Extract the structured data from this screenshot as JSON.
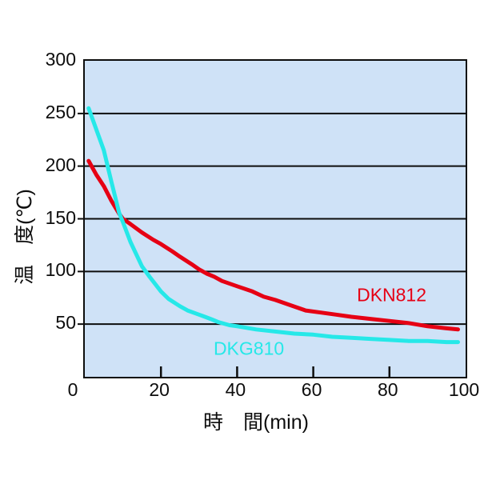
{
  "chart_data": {
    "type": "line",
    "title": "",
    "xlabel": "時　間(min)",
    "ylabel": "温　度(℃)",
    "xlim": [
      0,
      100
    ],
    "ylim": [
      0,
      300
    ],
    "x_ticks": [
      0,
      20,
      40,
      60,
      80,
      100
    ],
    "y_ticks": [
      50,
      100,
      150,
      200,
      250,
      300
    ],
    "grid": "horizontal lines every 50, black, ticks extend left of axis; inner bottom ticks at 20/40/60/80",
    "legend_position": "inline labels beside curves",
    "colors": {
      "plot_background": "#cfe2f7",
      "grid": "#0d0d0d",
      "axis": "#0d0d0d",
      "text": "#0d0d0d"
    },
    "series": [
      {
        "name": "DKN812",
        "color": "#e60014",
        "label_anchor": {
          "x": 81,
          "y": 76
        },
        "points": [
          [
            1,
            205
          ],
          [
            3,
            192
          ],
          [
            5,
            181
          ],
          [
            7,
            167
          ],
          [
            9,
            155
          ],
          [
            10,
            150
          ],
          [
            12,
            145
          ],
          [
            15,
            137
          ],
          [
            18,
            130
          ],
          [
            20,
            126
          ],
          [
            23,
            119
          ],
          [
            25,
            114
          ],
          [
            28,
            107
          ],
          [
            30,
            102
          ],
          [
            32,
            98
          ],
          [
            34,
            95
          ],
          [
            36,
            91
          ],
          [
            40,
            86
          ],
          [
            44,
            81
          ],
          [
            47,
            76
          ],
          [
            50,
            73
          ],
          [
            54,
            68
          ],
          [
            58,
            63
          ],
          [
            62,
            61
          ],
          [
            66,
            59
          ],
          [
            70,
            57
          ],
          [
            75,
            55
          ],
          [
            80,
            53
          ],
          [
            85,
            51
          ],
          [
            90,
            48
          ],
          [
            95,
            46
          ],
          [
            98,
            45
          ]
        ]
      },
      {
        "name": "DKG810",
        "color": "#26e8e8",
        "label_anchor": {
          "x": 43.5,
          "y": 25
        },
        "points": [
          [
            1,
            255
          ],
          [
            3,
            235
          ],
          [
            5,
            215
          ],
          [
            7,
            185
          ],
          [
            9,
            156
          ],
          [
            10,
            147
          ],
          [
            12,
            128
          ],
          [
            15,
            105
          ],
          [
            17,
            95
          ],
          [
            20,
            81
          ],
          [
            22,
            74
          ],
          [
            25,
            67
          ],
          [
            27,
            63
          ],
          [
            30,
            59
          ],
          [
            33,
            55
          ],
          [
            35,
            52
          ],
          [
            38,
            49
          ],
          [
            40,
            48
          ],
          [
            45,
            45
          ],
          [
            50,
            43
          ],
          [
            55,
            41
          ],
          [
            60,
            40
          ],
          [
            65,
            38
          ],
          [
            70,
            37
          ],
          [
            75,
            36
          ],
          [
            80,
            35
          ],
          [
            85,
            34
          ],
          [
            90,
            34
          ],
          [
            95,
            33
          ],
          [
            98,
            33
          ]
        ]
      }
    ]
  }
}
